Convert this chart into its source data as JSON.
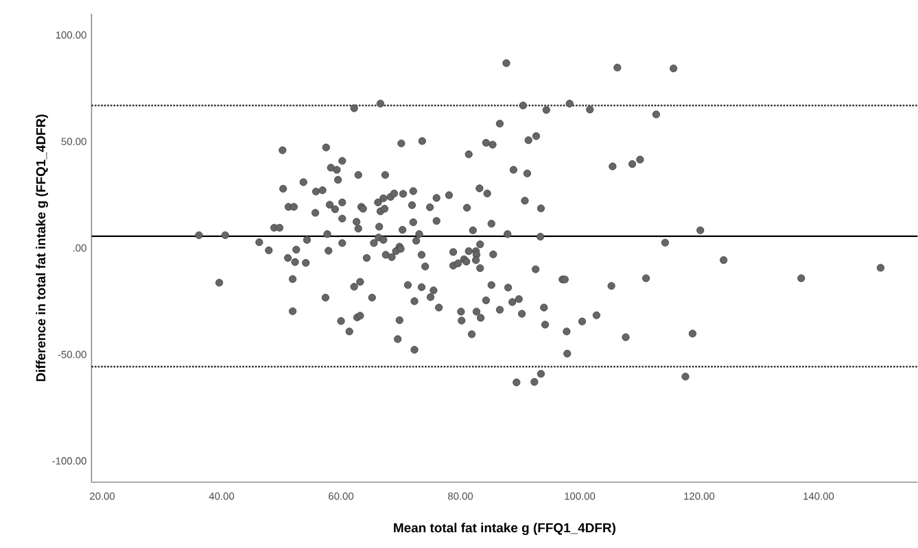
{
  "chart_data": {
    "type": "scatter",
    "xlabel": "Mean total fat intake g (FFQ1_4DFR)",
    "ylabel": "Difference in total fat intake g (FFQ1_4DFR)",
    "xlim": [
      18.2,
      156.6
    ],
    "ylim": [
      -110,
      110
    ],
    "xticks": [
      {
        "value": 20,
        "label": "20.00"
      },
      {
        "value": 40,
        "label": "40.00"
      },
      {
        "value": 60,
        "label": "60.00"
      },
      {
        "value": 80,
        "label": "80.00"
      },
      {
        "value": 100,
        "label": "100.00"
      },
      {
        "value": 120,
        "label": "120.00"
      },
      {
        "value": 140,
        "label": "140.00"
      }
    ],
    "yticks": [
      {
        "value": -100,
        "label": "-100.00"
      },
      {
        "value": -50,
        "label": "-50.00"
      },
      {
        "value": 0,
        "label": ".00"
      },
      {
        "value": 50,
        "label": "50.00"
      },
      {
        "value": 100,
        "label": "100.00"
      }
    ],
    "marker": "circle",
    "ref_lines": [
      {
        "axis": "y",
        "value": 5.5,
        "line_style": "solid",
        "color": "#000000"
      },
      {
        "axis": "y",
        "value": 66.9,
        "line_style": "dotted",
        "color": "#333333"
      },
      {
        "axis": "y",
        "value": -55.7,
        "line_style": "dotted",
        "color": "#333333"
      }
    ],
    "series": [
      {
        "color": "#666666",
        "x": [
          36.2,
          40.6,
          50.2,
          57.5,
          50.3,
          53.7,
          55.8,
          56.9,
          51.2,
          52.1,
          48.8,
          49.7,
          55.7,
          58.1,
          59.0,
          58.3,
          59.3,
          59.5,
          57.7,
          60.2,
          60.2,
          60.2,
          46.3,
          47.9,
          52.5,
          54.3,
          51.1,
          52.3,
          54.1,
          57.9,
          60.2,
          39.6,
          51.9,
          57.4,
          51.9,
          60.0,
          87.7,
          106.3,
          62.2,
          66.6,
          90.5,
          94.4,
          98.3,
          101.7,
          86.6,
          70.1,
          73.6,
          81.4,
          84.3,
          85.4,
          91.4,
          92.7,
          62.9,
          67.4,
          88.9,
          91.2,
          105.5,
          108.8,
          110.1,
          63.4,
          63.7,
          62.6,
          62.9,
          66.2,
          67.1,
          66.6,
          67.3,
          68.3,
          68.9,
          70.4,
          72.1,
          71.9,
          66.4,
          70.3,
          72.1,
          73.1,
          74.9,
          76.0,
          78.1,
          76.0,
          81.1,
          83.2,
          84.5,
          82.1,
          85.2,
          87.9,
          90.8,
          93.5,
          93.4,
          115.7,
          112.8,
          120.2,
          114.3,
          124.1,
          111.1,
          137.1,
          150.4,
          107.7,
          118.9,
          117.7,
          65.5,
          66.3,
          67.1,
          72.6,
          69.8,
          83.3,
          64.3,
          67.5,
          68.5,
          69.2,
          70.0,
          73.5,
          74.1,
          78.8,
          78.8,
          79.6,
          80.6,
          81.4,
          81.0,
          82.6,
          82.7,
          82.6,
          83.3,
          85.5,
          62.2,
          63.2,
          65.2,
          61.4,
          62.7,
          63.2,
          69.5,
          69.8,
          72.3,
          71.2,
          72.3,
          73.5,
          75.0,
          75.5,
          76.4,
          80.1,
          80.2,
          81.9,
          82.7,
          83.4,
          84.3,
          85.2,
          86.6,
          88.0,
          88.7,
          89.8,
          90.3,
          92.6,
          94.0,
          94.2,
          97.1,
          97.5,
          97.8,
          97.9,
          100.4,
          102.8,
          105.3,
          89.4,
          92.4,
          93.5
        ],
        "values": [
          6,
          6,
          45.9,
          47.2,
          27.8,
          30.9,
          26.5,
          27.1,
          19.3,
          19.3,
          9.5,
          9.5,
          16.5,
          20.3,
          18.2,
          37.7,
          36.7,
          32,
          6.5,
          40.9,
          21.4,
          13.8,
          2.7,
          -1.1,
          -0.8,
          3.8,
          -4.7,
          -6.6,
          -7,
          -1.3,
          2.3,
          -16.3,
          -14.6,
          -23.3,
          -29.7,
          -34.3,
          86.8,
          84.7,
          65.6,
          67.8,
          66.9,
          64.8,
          67.8,
          65,
          58.4,
          49.1,
          50.2,
          44,
          49.4,
          48.5,
          50.6,
          52.5,
          34.3,
          34.3,
          36.7,
          35,
          38.3,
          39.4,
          41.5,
          19.3,
          18.4,
          12.3,
          9.1,
          21.4,
          23.3,
          17.2,
          18.4,
          24,
          25.6,
          25.4,
          26.7,
          20.1,
          10,
          8.5,
          12.1,
          6.5,
          19.1,
          23.5,
          24.8,
          12.7,
          18.9,
          28,
          25.6,
          8.3,
          11.4,
          6.5,
          22.2,
          18.6,
          5.3,
          84.3,
          62.7,
          8.3,
          2.5,
          -5.7,
          -14.2,
          -14.2,
          -9.3,
          -41.9,
          -40.2,
          -60.4,
          2.3,
          4.9,
          3.8,
          3.4,
          0.6,
          1.7,
          -4.7,
          -3.2,
          -4.3,
          -1.5,
          -0.4,
          -3.2,
          -8.7,
          -1.9,
          -8.3,
          -7.2,
          -5.3,
          -1.5,
          -6.4,
          -1.5,
          -3.2,
          -5.7,
          -9.5,
          -3,
          -18.2,
          -15.9,
          -23.3,
          -39.2,
          -32.6,
          -31.8,
          -42.8,
          -33.9,
          -47.8,
          -17.4,
          -25,
          -18.4,
          -23.1,
          -19.9,
          -28,
          -29.9,
          -34.1,
          -40.5,
          -29.9,
          -32.8,
          -24.6,
          -17.4,
          -29,
          -18.6,
          -25.4,
          -24,
          -30.9,
          -10,
          -28,
          -36,
          -14.8,
          -14.8,
          -39.2,
          -49.6,
          -34.5,
          -31.6,
          -17.8,
          -63.1,
          -62.9,
          -59.1
        ]
      }
    ]
  }
}
